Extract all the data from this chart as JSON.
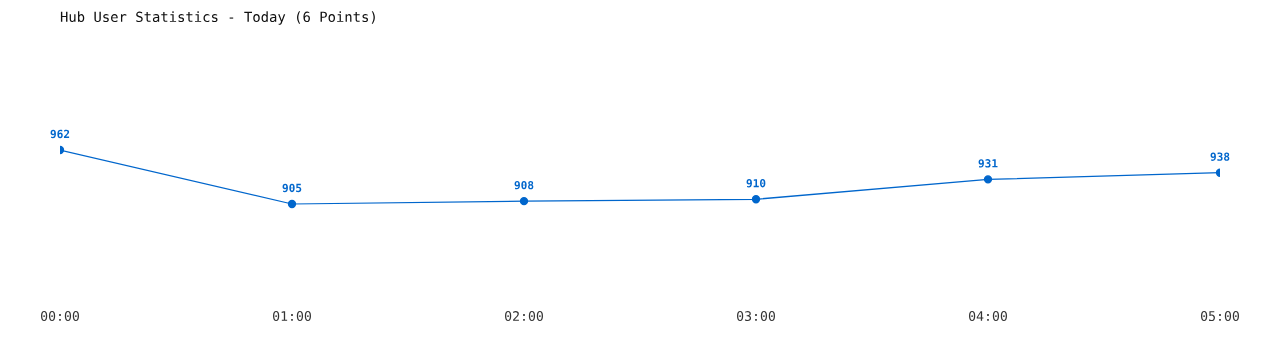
{
  "chart_data": {
    "type": "line",
    "title": "Hub User Statistics - Today (6 Points)",
    "categories": [
      "00:00",
      "01:00",
      "02:00",
      "03:00",
      "04:00",
      "05:00"
    ],
    "series": [
      {
        "color": "#0066cc",
        "values": [
          962,
          905,
          908,
          910,
          931,
          938
        ]
      }
    ],
    "data_labels": true,
    "marker": "circle",
    "grid": false,
    "legend": false,
    "tick_labels": "x"
  }
}
